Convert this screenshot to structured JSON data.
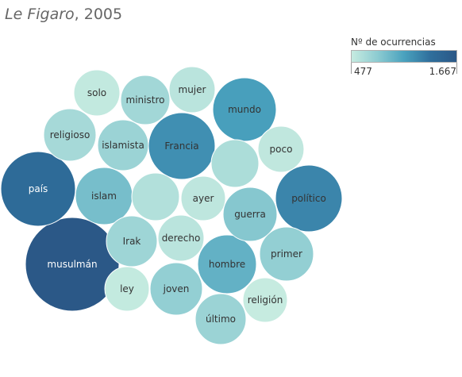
{
  "title": {
    "source": "Le Figaro",
    "year": ", 2005"
  },
  "legend": {
    "title": "Nº de ocurrencias",
    "min_label": "477",
    "max_label": "1.667",
    "min": 477,
    "max": 1667
  },
  "colors": {
    "low": "#c6ebe0",
    "mid": "#4aa2be",
    "high": "#2b5887",
    "label_dark": "#333333",
    "label_light": "#ffffff"
  },
  "chart_data": {
    "type": "packed-bubble",
    "size_measure": "Nº de ocurrencias",
    "color_measure": "Nº de ocurrencias",
    "bubbles": [
      {
        "label": "musulmán",
        "value": 1667
      },
      {
        "label": "país",
        "value": 1420
      },
      {
        "label": "político",
        "value": 1240
      },
      {
        "label": "Francia",
        "value": 1180
      },
      {
        "label": "mundo",
        "value": 1090
      },
      {
        "label": "hombre",
        "value": 960
      },
      {
        "label": "islam",
        "value": 870
      },
      {
        "label": "guerra",
        "value": 800
      },
      {
        "label": "primer",
        "value": 740
      },
      {
        "label": "joven",
        "value": 740
      },
      {
        "label": "islamista",
        "value": 700
      },
      {
        "label": "último",
        "value": 700
      },
      {
        "label": "Irak",
        "value": 680
      },
      {
        "label": "ministro",
        "value": 660
      },
      {
        "label": "religioso",
        "value": 640
      },
      {
        "label": "",
        "value": 610
      },
      {
        "label": "",
        "value": 580
      },
      {
        "label": "mujer",
        "value": 540
      },
      {
        "label": "derecho",
        "value": 540
      },
      {
        "label": "ayer",
        "value": 520
      },
      {
        "label": "poco",
        "value": 510
      },
      {
        "label": "solo",
        "value": 500
      },
      {
        "label": "ley",
        "value": 490
      },
      {
        "label": "religión",
        "value": 477
      }
    ]
  }
}
